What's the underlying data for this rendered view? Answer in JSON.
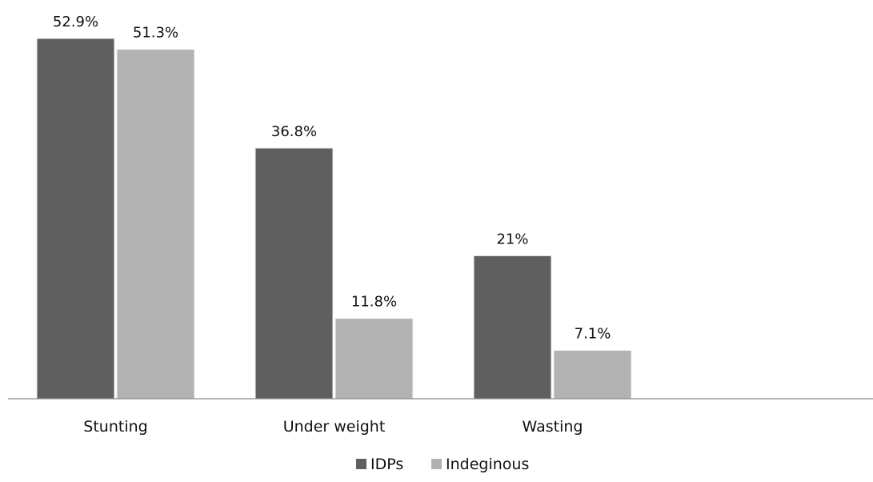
{
  "chart_data": {
    "type": "bar",
    "title": "",
    "xlabel": "",
    "ylabel": "",
    "categories": [
      "Stunting",
      "Under weight",
      "Wasting"
    ],
    "series": [
      {
        "name": "IDPs",
        "values": [
          52.9,
          36.8,
          21
        ],
        "labels": [
          "52.9%",
          "36.8%",
          "21%"
        ],
        "color": "#5f5f5f"
      },
      {
        "name": "Indeginous",
        "values": [
          51.3,
          11.8,
          7.1
        ],
        "labels": [
          "51.3%",
          "11.8%",
          "7.1%"
        ],
        "color": "#b2b2b2"
      }
    ],
    "ylim": [
      0,
      55
    ],
    "grid": false,
    "legend_position": "bottom"
  }
}
